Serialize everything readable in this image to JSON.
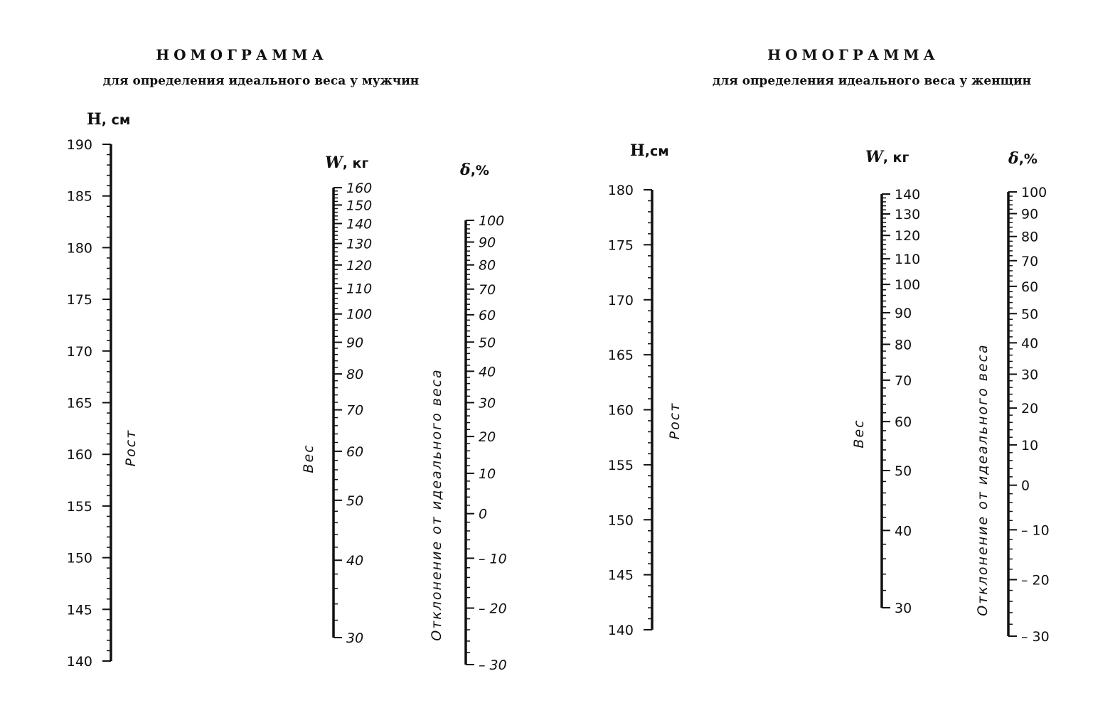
{
  "chart_data": [
    {
      "type": "nomogram",
      "title": "НОМОГРАММА",
      "subtitle": "для определения идеального веса у мужчин",
      "axes": [
        {
          "key": "height",
          "label_head": "Н",
          "label_tail": ", см",
          "side_label": "Рост",
          "scale": "linear",
          "range": [
            140,
            190
          ],
          "ticks": [
            140,
            145,
            150,
            155,
            160,
            165,
            170,
            175,
            180,
            185,
            190
          ],
          "minor_step": 1
        },
        {
          "key": "weight",
          "label_head": "W",
          "label_tail": ", кг",
          "side_label": "Вес",
          "scale": "log",
          "range": [
            30,
            160
          ],
          "ticks": [
            30,
            40,
            50,
            60,
            70,
            80,
            90,
            100,
            110,
            120,
            130,
            140,
            150,
            160
          ],
          "minor_step": 2
        },
        {
          "key": "deviation",
          "label_head": "δ",
          "label_tail": ",%",
          "side_label": "Отклонение от идеального веса",
          "scale": "log-offset",
          "range": [
            -30,
            100
          ],
          "ticks": [
            -30,
            -20,
            -10,
            0,
            10,
            20,
            30,
            40,
            50,
            60,
            70,
            80,
            90,
            100
          ],
          "tick_labels": [
            "– 30",
            "– 20",
            "– 10",
            "0",
            "10",
            "20",
            "30",
            "40",
            "50",
            "60",
            "70",
            "80",
            "90",
            "100"
          ],
          "minor_step": 2
        }
      ]
    },
    {
      "type": "nomogram",
      "title": "НОМОГРАММА",
      "subtitle": "для определения идеального веса у женщин",
      "axes": [
        {
          "key": "height",
          "label_head": "Н",
          "label_tail": ",см",
          "side_label": "Рост",
          "scale": "linear",
          "range": [
            140,
            180
          ],
          "ticks": [
            140,
            145,
            150,
            155,
            160,
            165,
            170,
            175,
            180
          ],
          "minor_step": 1
        },
        {
          "key": "weight",
          "label_head": "W",
          "label_tail": ", кг",
          "side_label": "Вес",
          "scale": "log",
          "range": [
            30,
            140
          ],
          "ticks": [
            30,
            40,
            50,
            60,
            70,
            80,
            90,
            100,
            110,
            120,
            130,
            140
          ],
          "minor_step": 2
        },
        {
          "key": "deviation",
          "label_head": "δ",
          "label_tail": ",%",
          "side_label": "Отклонение от идеального веса",
          "scale": "log-offset",
          "range": [
            -30,
            100
          ],
          "ticks": [
            -30,
            -20,
            -10,
            0,
            10,
            20,
            30,
            40,
            50,
            60,
            70,
            80,
            90,
            100
          ],
          "tick_labels": [
            "– 30",
            "– 20",
            "– 10",
            "0",
            "10",
            "20",
            "30",
            "40",
            "50",
            "60",
            "70",
            "80",
            "90",
            "100"
          ],
          "minor_step": 2
        }
      ]
    }
  ]
}
